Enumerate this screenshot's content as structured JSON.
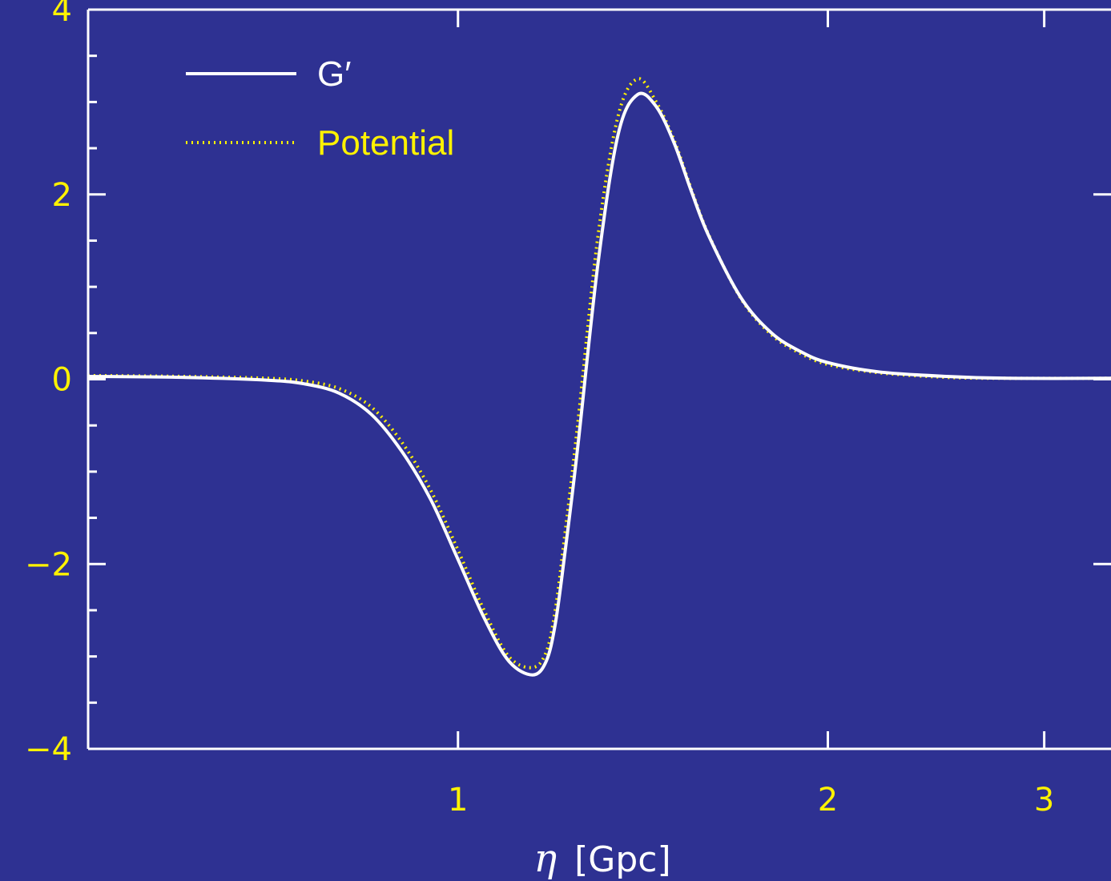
{
  "chart_data": {
    "type": "line",
    "title": "",
    "xlabel_symbol": "η",
    "xlabel_unit": "[Gpc]",
    "ylabel": "",
    "xscale": "log",
    "xlim": [
      0.5,
      3.4
    ],
    "ylim": [
      -4,
      4
    ],
    "grid": false,
    "legend_position": "top-left",
    "x_ticks": [
      {
        "value": 1,
        "label": "1"
      },
      {
        "value": 2,
        "label": "2"
      },
      {
        "value": 3,
        "label": "3"
      }
    ],
    "y_ticks": [
      {
        "value": 4,
        "label": "4"
      },
      {
        "value": 2,
        "label": "2"
      },
      {
        "value": 0,
        "label": "0"
      },
      {
        "value": -2,
        "label": "−2"
      },
      {
        "value": -4,
        "label": "−4"
      }
    ],
    "y_minor_step": 0.5,
    "background_color": "#2E3192",
    "axis_color": "#FFFFFF",
    "tick_label_color": "#FFF200",
    "series": [
      {
        "name": "G′",
        "style": "solid",
        "color": "#FFFFFF",
        "x": [
          0.5,
          0.6,
          0.7,
          0.75,
          0.8,
          0.85,
          0.9,
          0.95,
          1.0,
          1.05,
          1.1,
          1.15,
          1.18,
          1.2,
          1.22,
          1.25,
          1.3,
          1.35,
          1.4,
          1.45,
          1.5,
          1.55,
          1.6,
          1.7,
          1.8,
          1.9,
          2.0,
          2.2,
          2.5,
          2.8,
          3.4
        ],
        "y": [
          0.03,
          0.02,
          -0.01,
          -0.05,
          -0.15,
          -0.38,
          -0.78,
          -1.3,
          -1.95,
          -2.58,
          -3.05,
          -3.2,
          -3.05,
          -2.65,
          -1.95,
          -0.8,
          1.25,
          2.65,
          3.08,
          2.95,
          2.55,
          2.02,
          1.55,
          0.88,
          0.5,
          0.3,
          0.18,
          0.08,
          0.03,
          0.01,
          0.01
        ]
      },
      {
        "name": "Potential",
        "style": "dotted",
        "color": "#FFF200",
        "x": [
          0.5,
          0.6,
          0.7,
          0.75,
          0.8,
          0.85,
          0.9,
          0.95,
          1.0,
          1.05,
          1.1,
          1.15,
          1.18,
          1.2,
          1.22,
          1.25,
          1.3,
          1.35,
          1.4,
          1.45,
          1.5,
          1.55,
          1.6,
          1.7,
          1.8,
          1.9,
          2.0,
          2.2,
          2.5,
          2.8,
          3.4
        ],
        "y": [
          0.04,
          0.03,
          0.01,
          -0.02,
          -0.1,
          -0.3,
          -0.68,
          -1.2,
          -1.85,
          -2.5,
          -3.0,
          -3.12,
          -2.95,
          -2.5,
          -1.75,
          -0.55,
          1.55,
          2.85,
          3.25,
          3.0,
          2.58,
          2.04,
          1.56,
          0.87,
          0.48,
          0.28,
          0.16,
          0.07,
          0.02,
          0.01,
          0.01
        ]
      }
    ]
  }
}
